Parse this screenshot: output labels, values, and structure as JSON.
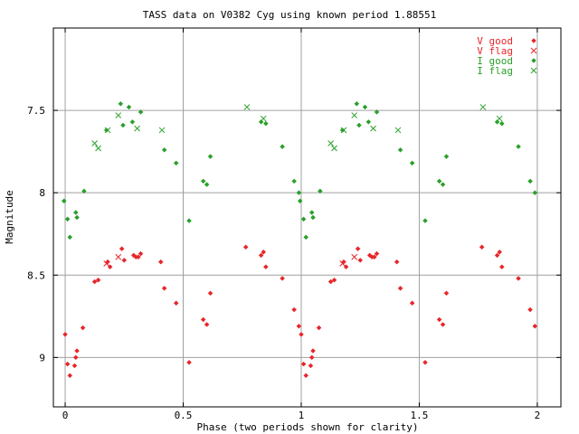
{
  "chart_data": {
    "type": "scatter",
    "title": "TASS data on V0382 Cyg  using known period 1.88551",
    "xlabel": "Phase (two periods shown for clarity)",
    "ylabel": "Magnitude",
    "xlim": [
      -0.05,
      2.1
    ],
    "ylim": [
      9.3,
      7.0
    ],
    "y_inverted": true,
    "grid": true,
    "legend_position": "top-right",
    "x_ticks": [
      {
        "value": 0,
        "label": "0"
      },
      {
        "value": 0.5,
        "label": "0.5"
      },
      {
        "value": 1,
        "label": "1"
      },
      {
        "value": 1.5,
        "label": "1.5"
      },
      {
        "value": 2,
        "label": "2"
      }
    ],
    "y_ticks": [
      {
        "value": 7.5,
        "label": "7.5"
      },
      {
        "value": 8,
        "label": "8"
      },
      {
        "value": 8.5,
        "label": "8.5"
      },
      {
        "value": 9,
        "label": "9"
      }
    ],
    "series": [
      {
        "name": "V good",
        "marker": "diamond",
        "color": "#e8262a",
        "points": [
          [
            0.0,
            8.86
          ],
          [
            0.01,
            9.04
          ],
          [
            0.02,
            9.11
          ],
          [
            0.04,
            9.05
          ],
          [
            0.045,
            9.0
          ],
          [
            0.05,
            8.96
          ],
          [
            0.075,
            8.82
          ],
          [
            0.125,
            8.54
          ],
          [
            0.14,
            8.53
          ],
          [
            0.18,
            8.42
          ],
          [
            0.19,
            8.45
          ],
          [
            0.24,
            8.34
          ],
          [
            0.25,
            8.41
          ],
          [
            0.29,
            8.38
          ],
          [
            0.3,
            8.39
          ],
          [
            0.31,
            8.39
          ],
          [
            0.32,
            8.37
          ],
          [
            0.405,
            8.42
          ],
          [
            0.42,
            8.58
          ],
          [
            0.47,
            8.67
          ],
          [
            0.525,
            9.03
          ],
          [
            0.585,
            8.77
          ],
          [
            0.6,
            8.8
          ],
          [
            0.615,
            8.61
          ],
          [
            0.765,
            8.33
          ],
          [
            0.83,
            8.38
          ],
          [
            0.84,
            8.36
          ],
          [
            0.85,
            8.45
          ],
          [
            0.92,
            8.52
          ],
          [
            0.97,
            8.71
          ],
          [
            0.99,
            8.81
          ],
          [
            1.0,
            8.86
          ],
          [
            1.01,
            9.04
          ],
          [
            1.02,
            9.11
          ],
          [
            1.04,
            9.05
          ],
          [
            1.045,
            9.0
          ],
          [
            1.05,
            8.96
          ],
          [
            1.075,
            8.82
          ],
          [
            1.125,
            8.54
          ],
          [
            1.14,
            8.53
          ],
          [
            1.18,
            8.42
          ],
          [
            1.19,
            8.45
          ],
          [
            1.24,
            8.34
          ],
          [
            1.25,
            8.41
          ],
          [
            1.29,
            8.38
          ],
          [
            1.3,
            8.39
          ],
          [
            1.31,
            8.39
          ],
          [
            1.32,
            8.37
          ],
          [
            1.405,
            8.42
          ],
          [
            1.42,
            8.58
          ],
          [
            1.47,
            8.67
          ],
          [
            1.525,
            9.03
          ],
          [
            1.585,
            8.77
          ],
          [
            1.6,
            8.8
          ],
          [
            1.615,
            8.61
          ],
          [
            1.765,
            8.33
          ],
          [
            1.83,
            8.38
          ],
          [
            1.84,
            8.36
          ],
          [
            1.85,
            8.45
          ],
          [
            1.92,
            8.52
          ],
          [
            1.97,
            8.71
          ],
          [
            1.99,
            8.81
          ]
        ]
      },
      {
        "name": "V flag",
        "marker": "cross",
        "color": "#e8262a",
        "points": [
          [
            0.175,
            8.43
          ],
          [
            0.225,
            8.39
          ],
          [
            1.175,
            8.43
          ],
          [
            1.225,
            8.39
          ]
        ]
      },
      {
        "name": "I good",
        "marker": "diamond",
        "color": "#2aa02a",
        "points": [
          [
            -0.005,
            8.05
          ],
          [
            0.01,
            8.16
          ],
          [
            0.02,
            8.27
          ],
          [
            0.045,
            8.12
          ],
          [
            0.05,
            8.15
          ],
          [
            0.08,
            7.99
          ],
          [
            0.175,
            7.62
          ],
          [
            0.235,
            7.46
          ],
          [
            0.245,
            7.59
          ],
          [
            0.27,
            7.48
          ],
          [
            0.285,
            7.57
          ],
          [
            0.32,
            7.51
          ],
          [
            0.42,
            7.74
          ],
          [
            0.47,
            7.82
          ],
          [
            0.525,
            8.17
          ],
          [
            0.585,
            7.93
          ],
          [
            0.6,
            7.95
          ],
          [
            0.615,
            7.78
          ],
          [
            0.83,
            7.57
          ],
          [
            0.85,
            7.58
          ],
          [
            0.92,
            7.72
          ],
          [
            0.97,
            7.93
          ],
          [
            0.99,
            8.0
          ],
          [
            0.995,
            8.05
          ],
          [
            1.01,
            8.16
          ],
          [
            1.02,
            8.27
          ],
          [
            1.045,
            8.12
          ],
          [
            1.05,
            8.15
          ],
          [
            1.08,
            7.99
          ],
          [
            1.175,
            7.62
          ],
          [
            1.235,
            7.46
          ],
          [
            1.245,
            7.59
          ],
          [
            1.27,
            7.48
          ],
          [
            1.285,
            7.57
          ],
          [
            1.32,
            7.51
          ],
          [
            1.42,
            7.74
          ],
          [
            1.47,
            7.82
          ],
          [
            1.525,
            8.17
          ],
          [
            1.585,
            7.93
          ],
          [
            1.6,
            7.95
          ],
          [
            1.615,
            7.78
          ],
          [
            1.83,
            7.57
          ],
          [
            1.85,
            7.58
          ],
          [
            1.92,
            7.72
          ],
          [
            1.97,
            7.93
          ],
          [
            1.99,
            8.0
          ]
        ]
      },
      {
        "name": "I flag",
        "marker": "cross",
        "color": "#2aa02a",
        "points": [
          [
            0.125,
            7.7
          ],
          [
            0.14,
            7.73
          ],
          [
            0.18,
            7.62
          ],
          [
            0.225,
            7.53
          ],
          [
            0.305,
            7.61
          ],
          [
            0.41,
            7.62
          ],
          [
            0.77,
            7.48
          ],
          [
            0.84,
            7.55
          ],
          [
            1.125,
            7.7
          ],
          [
            1.14,
            7.73
          ],
          [
            1.18,
            7.62
          ],
          [
            1.225,
            7.53
          ],
          [
            1.305,
            7.61
          ],
          [
            1.41,
            7.62
          ],
          [
            1.77,
            7.48
          ],
          [
            1.84,
            7.55
          ]
        ]
      }
    ]
  }
}
